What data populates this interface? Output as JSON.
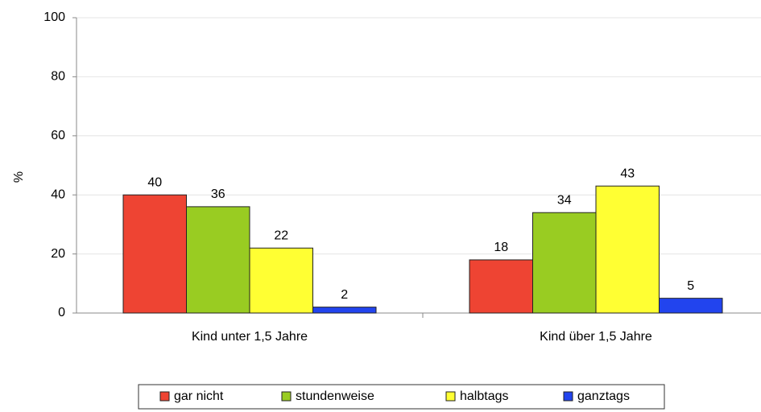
{
  "chart_data": {
    "type": "bar",
    "y_label": "%",
    "categories": [
      "Kind unter 1,5 Jahre",
      "Kind über 1,5 Jahre"
    ],
    "series": [
      {
        "name": "gar nicht",
        "color": "#ee4433",
        "values": [
          40,
          18
        ]
      },
      {
        "name": "stundenweise",
        "color": "#99cc22",
        "values": [
          36,
          34
        ]
      },
      {
        "name": "halbtags",
        "color": "#ffff33",
        "values": [
          22,
          43
        ]
      },
      {
        "name": "ganztags",
        "color": "#2244ee",
        "values": [
          2,
          5
        ]
      }
    ],
    "ylim": [
      0,
      100
    ],
    "yticks": [
      0,
      20,
      40,
      60,
      80,
      100
    ],
    "grid": true,
    "legend": "bottom"
  }
}
